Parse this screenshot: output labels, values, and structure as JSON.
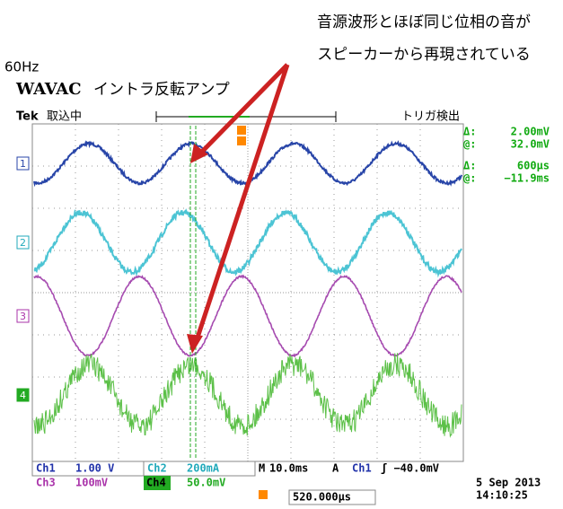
{
  "annotation": {
    "line1": "音源波形とほぼ同じ位相の音が",
    "line2": "スピーカーから再現されている"
  },
  "header": {
    "frequency": "60Hz",
    "brand": "WAVAC",
    "subtitle": "イントラ反転アンプ"
  },
  "scope": {
    "tek": "Tek",
    "status": "取込中",
    "trigger_status": "トリガ検出",
    "channels": [
      "1",
      "2",
      "3",
      "4"
    ],
    "readouts": [
      [
        "Δ:",
        "2.00mV"
      ],
      [
        "@:",
        "32.0mV"
      ],
      [
        "Δ:",
        "600µs"
      ],
      [
        "@:",
        "−11.9ms"
      ]
    ],
    "footer": {
      "ch1": "Ch1",
      "ch1_scale": "1.00 V",
      "ch2": "Ch2",
      "ch2_scale": "200mA",
      "ch3": "Ch3",
      "ch3_scale": "100mV",
      "ch4": "Ch4",
      "ch4_scale": "50.0mV",
      "time_label": "M",
      "time_scale": "10.0ms",
      "trigger_mode": "A",
      "trigger_source": "Ch1",
      "trigger_level": "ʃ −40.0mV",
      "position": "520.000µs",
      "date": "5 Sep  2013",
      "time": "14:10:25"
    }
  }
}
